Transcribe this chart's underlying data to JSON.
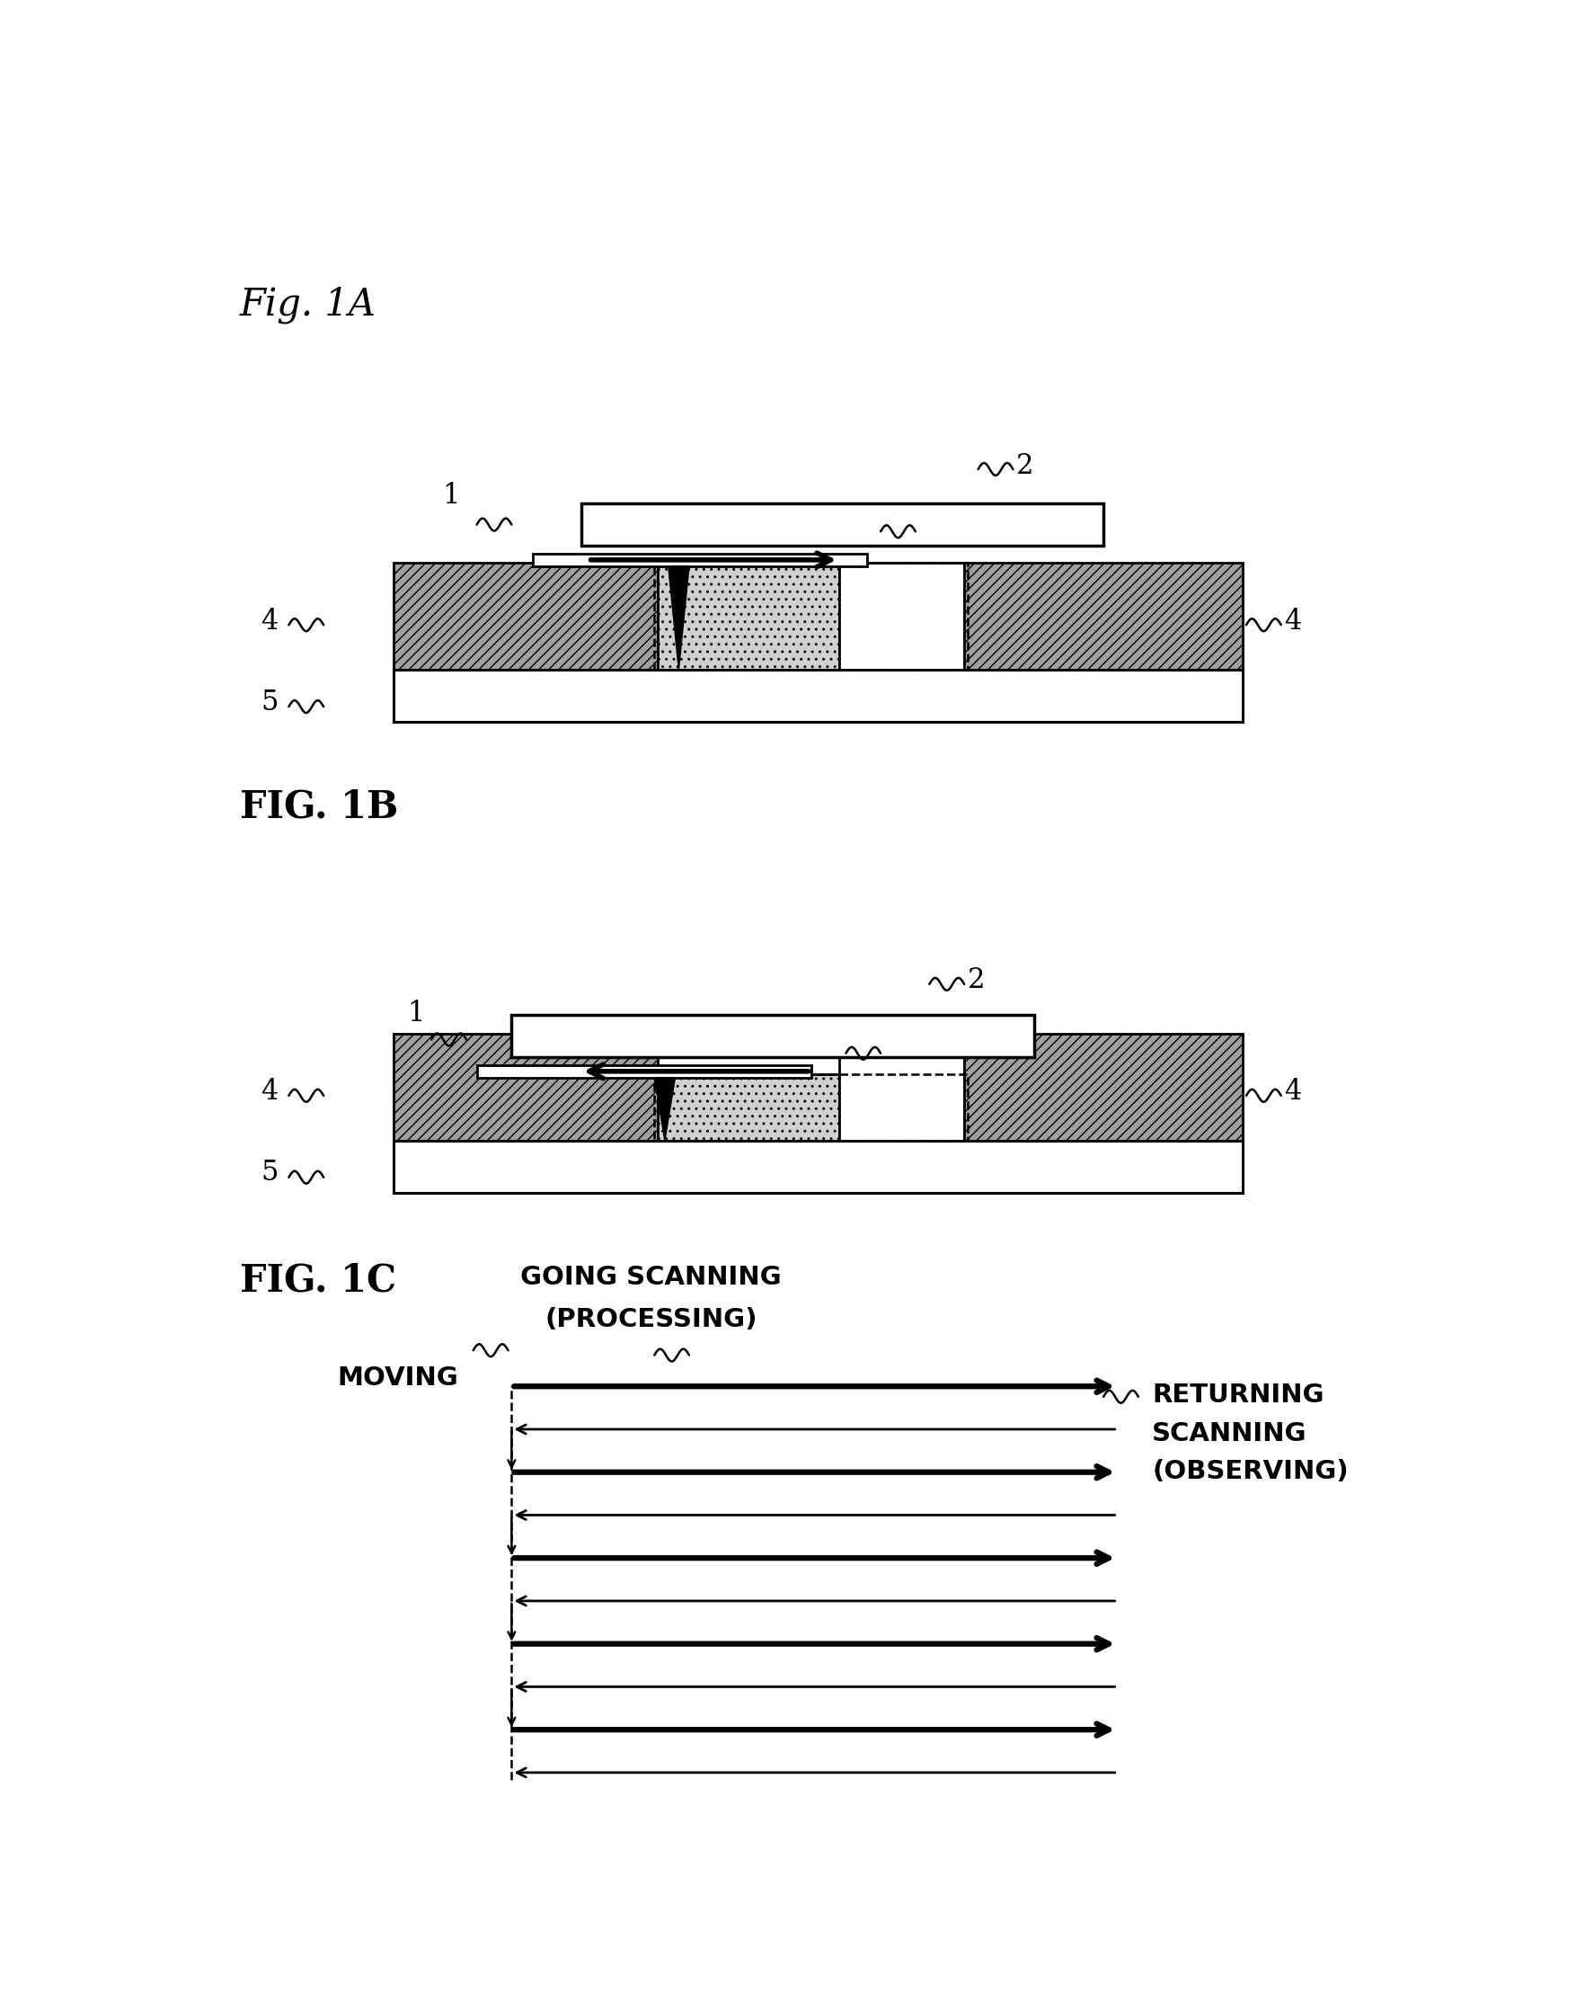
{
  "fig_label_A": "Fig. 1A",
  "fig_label_B": "FIG. 1B",
  "fig_label_C": "FIG. 1C",
  "bg_color": "#ffffff"
}
